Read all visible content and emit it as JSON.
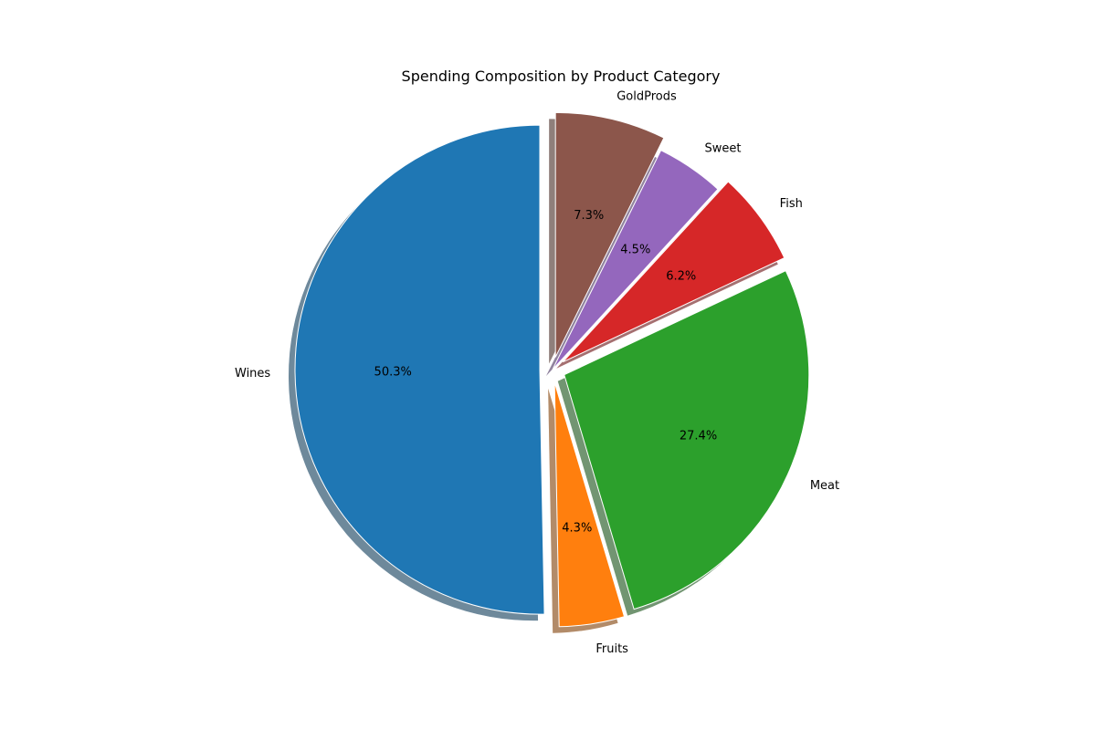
{
  "chart_data": {
    "type": "pie",
    "title": "Spending Composition by Product Category",
    "start_angle_deg": 90,
    "direction": "counterclockwise",
    "shadow": true,
    "slices": [
      {
        "label": "Wines",
        "value": 50.3,
        "pct_text": "50.3%",
        "exploded": true,
        "color": "#1f77b4"
      },
      {
        "label": "Fruits",
        "value": 4.3,
        "pct_text": "4.3%",
        "exploded": true,
        "color": "#ff7f0e"
      },
      {
        "label": "Meat",
        "value": 27.4,
        "pct_text": "27.4%",
        "exploded": true,
        "color": "#2ca02c"
      },
      {
        "label": "Fish",
        "value": 6.2,
        "pct_text": "6.2%",
        "exploded": true,
        "color": "#d62728"
      },
      {
        "label": "Sweet",
        "value": 4.5,
        "pct_text": "4.5%",
        "exploded": false,
        "color": "#9467bd"
      },
      {
        "label": "GoldProds",
        "value": 7.3,
        "pct_text": "7.3%",
        "exploded": true,
        "color": "#8c564b"
      }
    ]
  }
}
